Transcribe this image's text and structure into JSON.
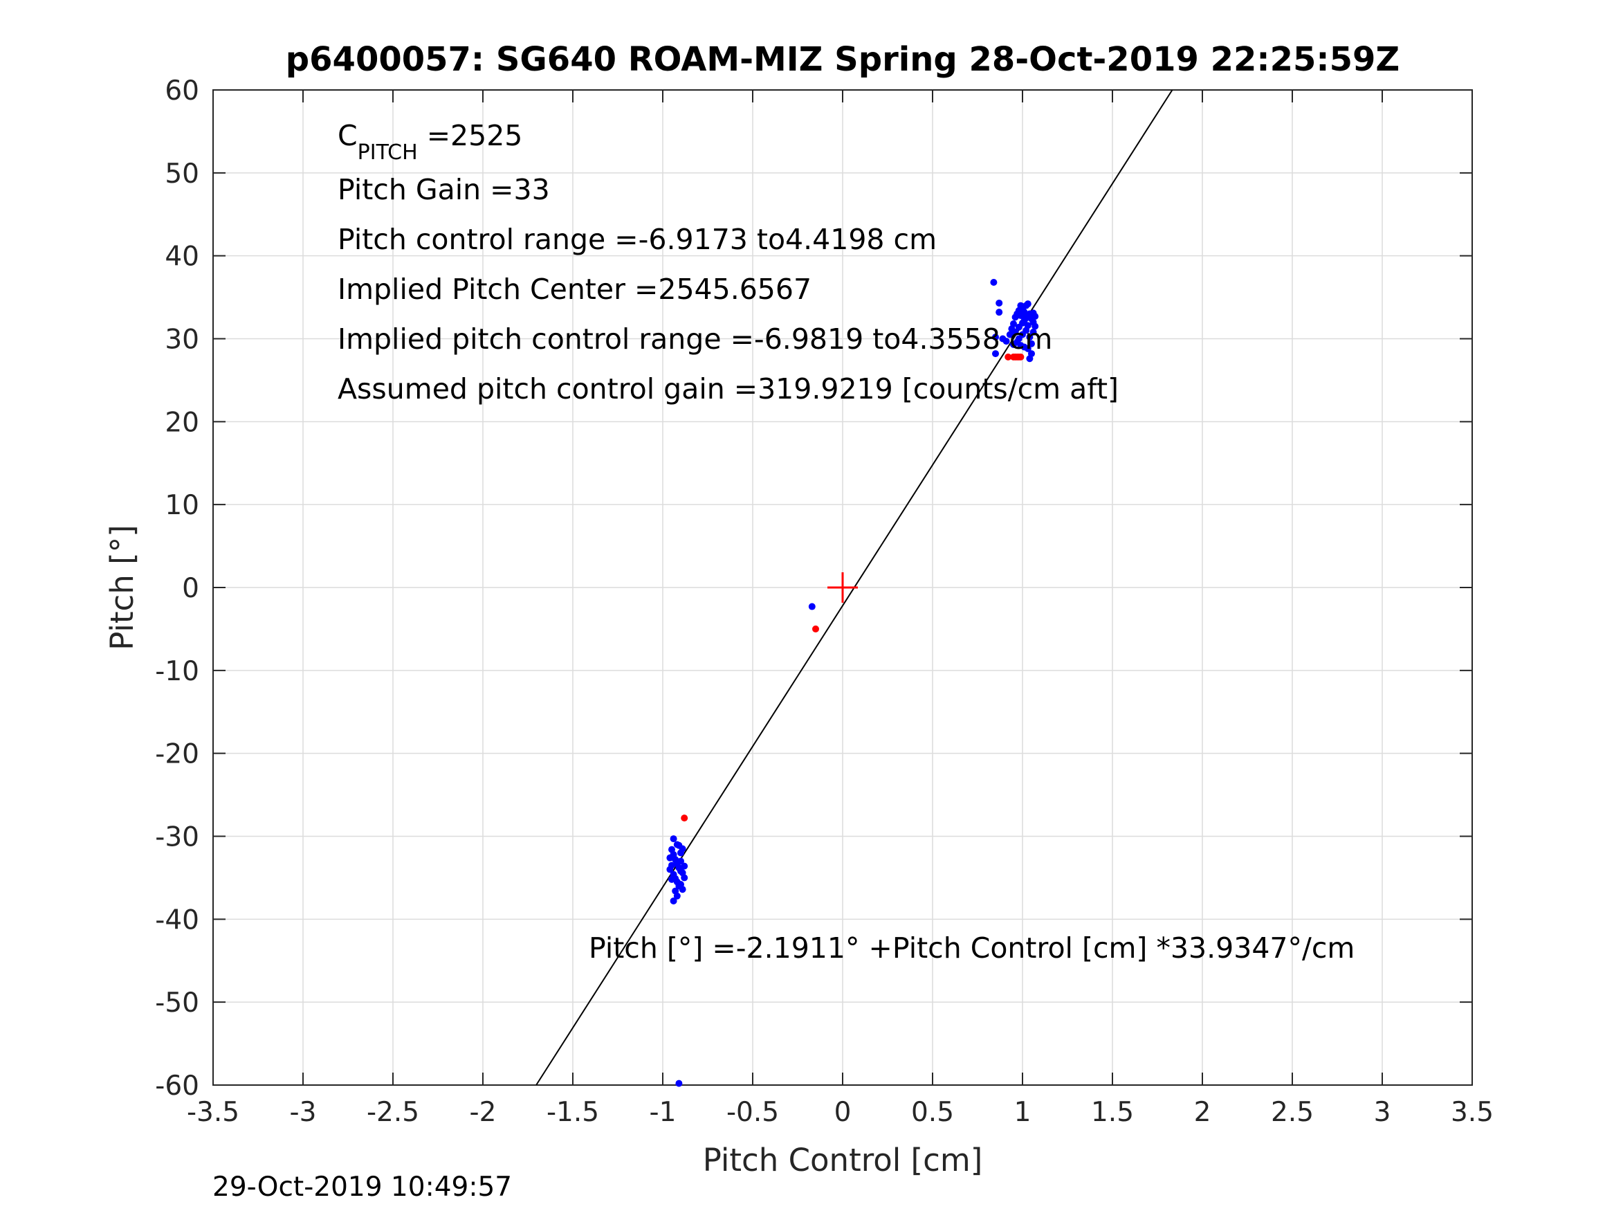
{
  "chart_data": {
    "type": "scatter",
    "title": "p6400057: SG640 ROAM-MIZ Spring 28-Oct-2019 22:25:59Z",
    "xlabel": "Pitch Control [cm]",
    "ylabel": "Pitch [°]",
    "xlim": [
      -3.5,
      3.5
    ],
    "ylim": [
      -60,
      60
    ],
    "xticks": [
      -3.5,
      -3,
      -2.5,
      -2,
      -1.5,
      -1,
      -0.5,
      0,
      0.5,
      1,
      1.5,
      2,
      2.5,
      3,
      3.5
    ],
    "xtick_labels": [
      "-3.5",
      "-3",
      "-2.5",
      "-2",
      "-1.5",
      "-1",
      "-0.5",
      "0",
      "0.5",
      "1",
      "1.5",
      "2",
      "2.5",
      "3",
      "3.5"
    ],
    "yticks": [
      -60,
      -50,
      -40,
      -30,
      -20,
      -10,
      0,
      10,
      20,
      30,
      40,
      50,
      60
    ],
    "ytick_labels": [
      "-60",
      "-50",
      "-40",
      "-30",
      "-20",
      "-10",
      "0",
      "10",
      "20",
      "30",
      "40",
      "50",
      "60"
    ],
    "grid": true,
    "fit_line": {
      "intercept": -2.1911,
      "slope": 33.9347,
      "color": "#000000"
    },
    "center_marker": {
      "x": 0,
      "y": 0,
      "color": "#ff0000"
    },
    "series": [
      {
        "name": "blue samples",
        "color": "#0000ff",
        "points": [
          [
            0.84,
            36.8
          ],
          [
            0.87,
            34.3
          ],
          [
            0.87,
            33.2
          ],
          [
            0.85,
            30.2
          ],
          [
            0.85,
            28.2
          ],
          [
            0.89,
            30.0
          ],
          [
            0.91,
            29.7
          ],
          [
            0.93,
            30.5
          ],
          [
            0.94,
            31.2
          ],
          [
            0.95,
            31.8
          ],
          [
            0.96,
            32.6
          ],
          [
            0.97,
            33.0
          ],
          [
            0.98,
            33.4
          ],
          [
            0.99,
            34.0
          ],
          [
            1.0,
            33.6
          ],
          [
            1.01,
            33.2
          ],
          [
            1.02,
            34.0
          ],
          [
            1.03,
            34.2
          ],
          [
            1.04,
            33.0
          ],
          [
            1.05,
            32.4
          ],
          [
            1.06,
            32.0
          ],
          [
            1.07,
            31.5
          ],
          [
            1.02,
            31.0
          ],
          [
            1.0,
            30.5
          ],
          [
            0.98,
            30.0
          ],
          [
            0.97,
            29.6
          ],
          [
            0.99,
            29.2
          ],
          [
            1.01,
            29.0
          ],
          [
            1.03,
            28.8
          ],
          [
            1.05,
            29.4
          ],
          [
            1.04,
            30.2
          ],
          [
            1.06,
            30.8
          ],
          [
            1.03,
            31.6
          ],
          [
            1.01,
            32.2
          ],
          [
            0.99,
            32.8
          ],
          [
            1.0,
            31.9
          ],
          [
            1.02,
            32.5
          ],
          [
            0.98,
            31.4
          ],
          [
            0.96,
            30.8
          ],
          [
            1.04,
            27.6
          ],
          [
            1.05,
            28.2
          ],
          [
            0.95,
            29.3
          ],
          [
            1.07,
            32.7
          ],
          [
            1.06,
            33.1
          ],
          [
            -0.94,
            -30.3
          ],
          [
            -0.95,
            -31.6
          ],
          [
            -0.94,
            -32.2
          ],
          [
            -0.93,
            -32.8
          ],
          [
            -0.92,
            -33.3
          ],
          [
            -0.91,
            -33.8
          ],
          [
            -0.9,
            -34.2
          ],
          [
            -0.94,
            -34.6
          ],
          [
            -0.93,
            -35.1
          ],
          [
            -0.92,
            -35.5
          ],
          [
            -0.91,
            -36.0
          ],
          [
            -0.93,
            -36.6
          ],
          [
            -0.92,
            -37.2
          ],
          [
            -0.94,
            -37.8
          ],
          [
            -0.9,
            -32.0
          ],
          [
            -0.89,
            -31.5
          ],
          [
            -0.91,
            -31.1
          ],
          [
            -0.9,
            -33.0
          ],
          [
            -0.89,
            -34.4
          ],
          [
            -0.88,
            -35.0
          ],
          [
            -0.9,
            -35.8
          ],
          [
            -0.89,
            -36.4
          ],
          [
            -0.95,
            -33.5
          ],
          [
            -0.96,
            -34.0
          ],
          [
            -0.95,
            -35.2
          ],
          [
            -0.96,
            -32.6
          ],
          [
            -0.92,
            -31.0
          ],
          [
            -0.88,
            -33.6
          ],
          [
            -0.91,
            -59.8
          ],
          [
            -0.17,
            -2.3
          ]
        ]
      },
      {
        "name": "red samples",
        "color": "#ff0000",
        "points": [
          [
            -0.88,
            -27.8
          ],
          [
            -0.15,
            -5.0
          ],
          [
            0.92,
            27.8
          ],
          [
            0.95,
            27.8
          ],
          [
            0.96,
            27.8
          ],
          [
            0.97,
            27.8
          ],
          [
            0.98,
            27.8
          ],
          [
            0.99,
            27.8
          ]
        ]
      }
    ],
    "annotations": {
      "c_pitch_main": "C",
      "c_pitch_sub": "PITCH",
      "c_pitch_value": " =2525",
      "pitch_gain": "Pitch Gain =33",
      "control_range": "Pitch control range =-6.9173 to4.4198 cm",
      "implied_center": "Implied Pitch Center =2545.6567",
      "implied_range": "Implied pitch control range =-6.9819 to4.3558 cm",
      "assumed_gain": "Assumed pitch control gain =319.9219 [counts/cm aft]",
      "fit_equation": "Pitch [°] =-2.1911° +Pitch Control [cm] *33.9347°/cm"
    },
    "footer_timestamp": "29-Oct-2019 10:49:57"
  }
}
